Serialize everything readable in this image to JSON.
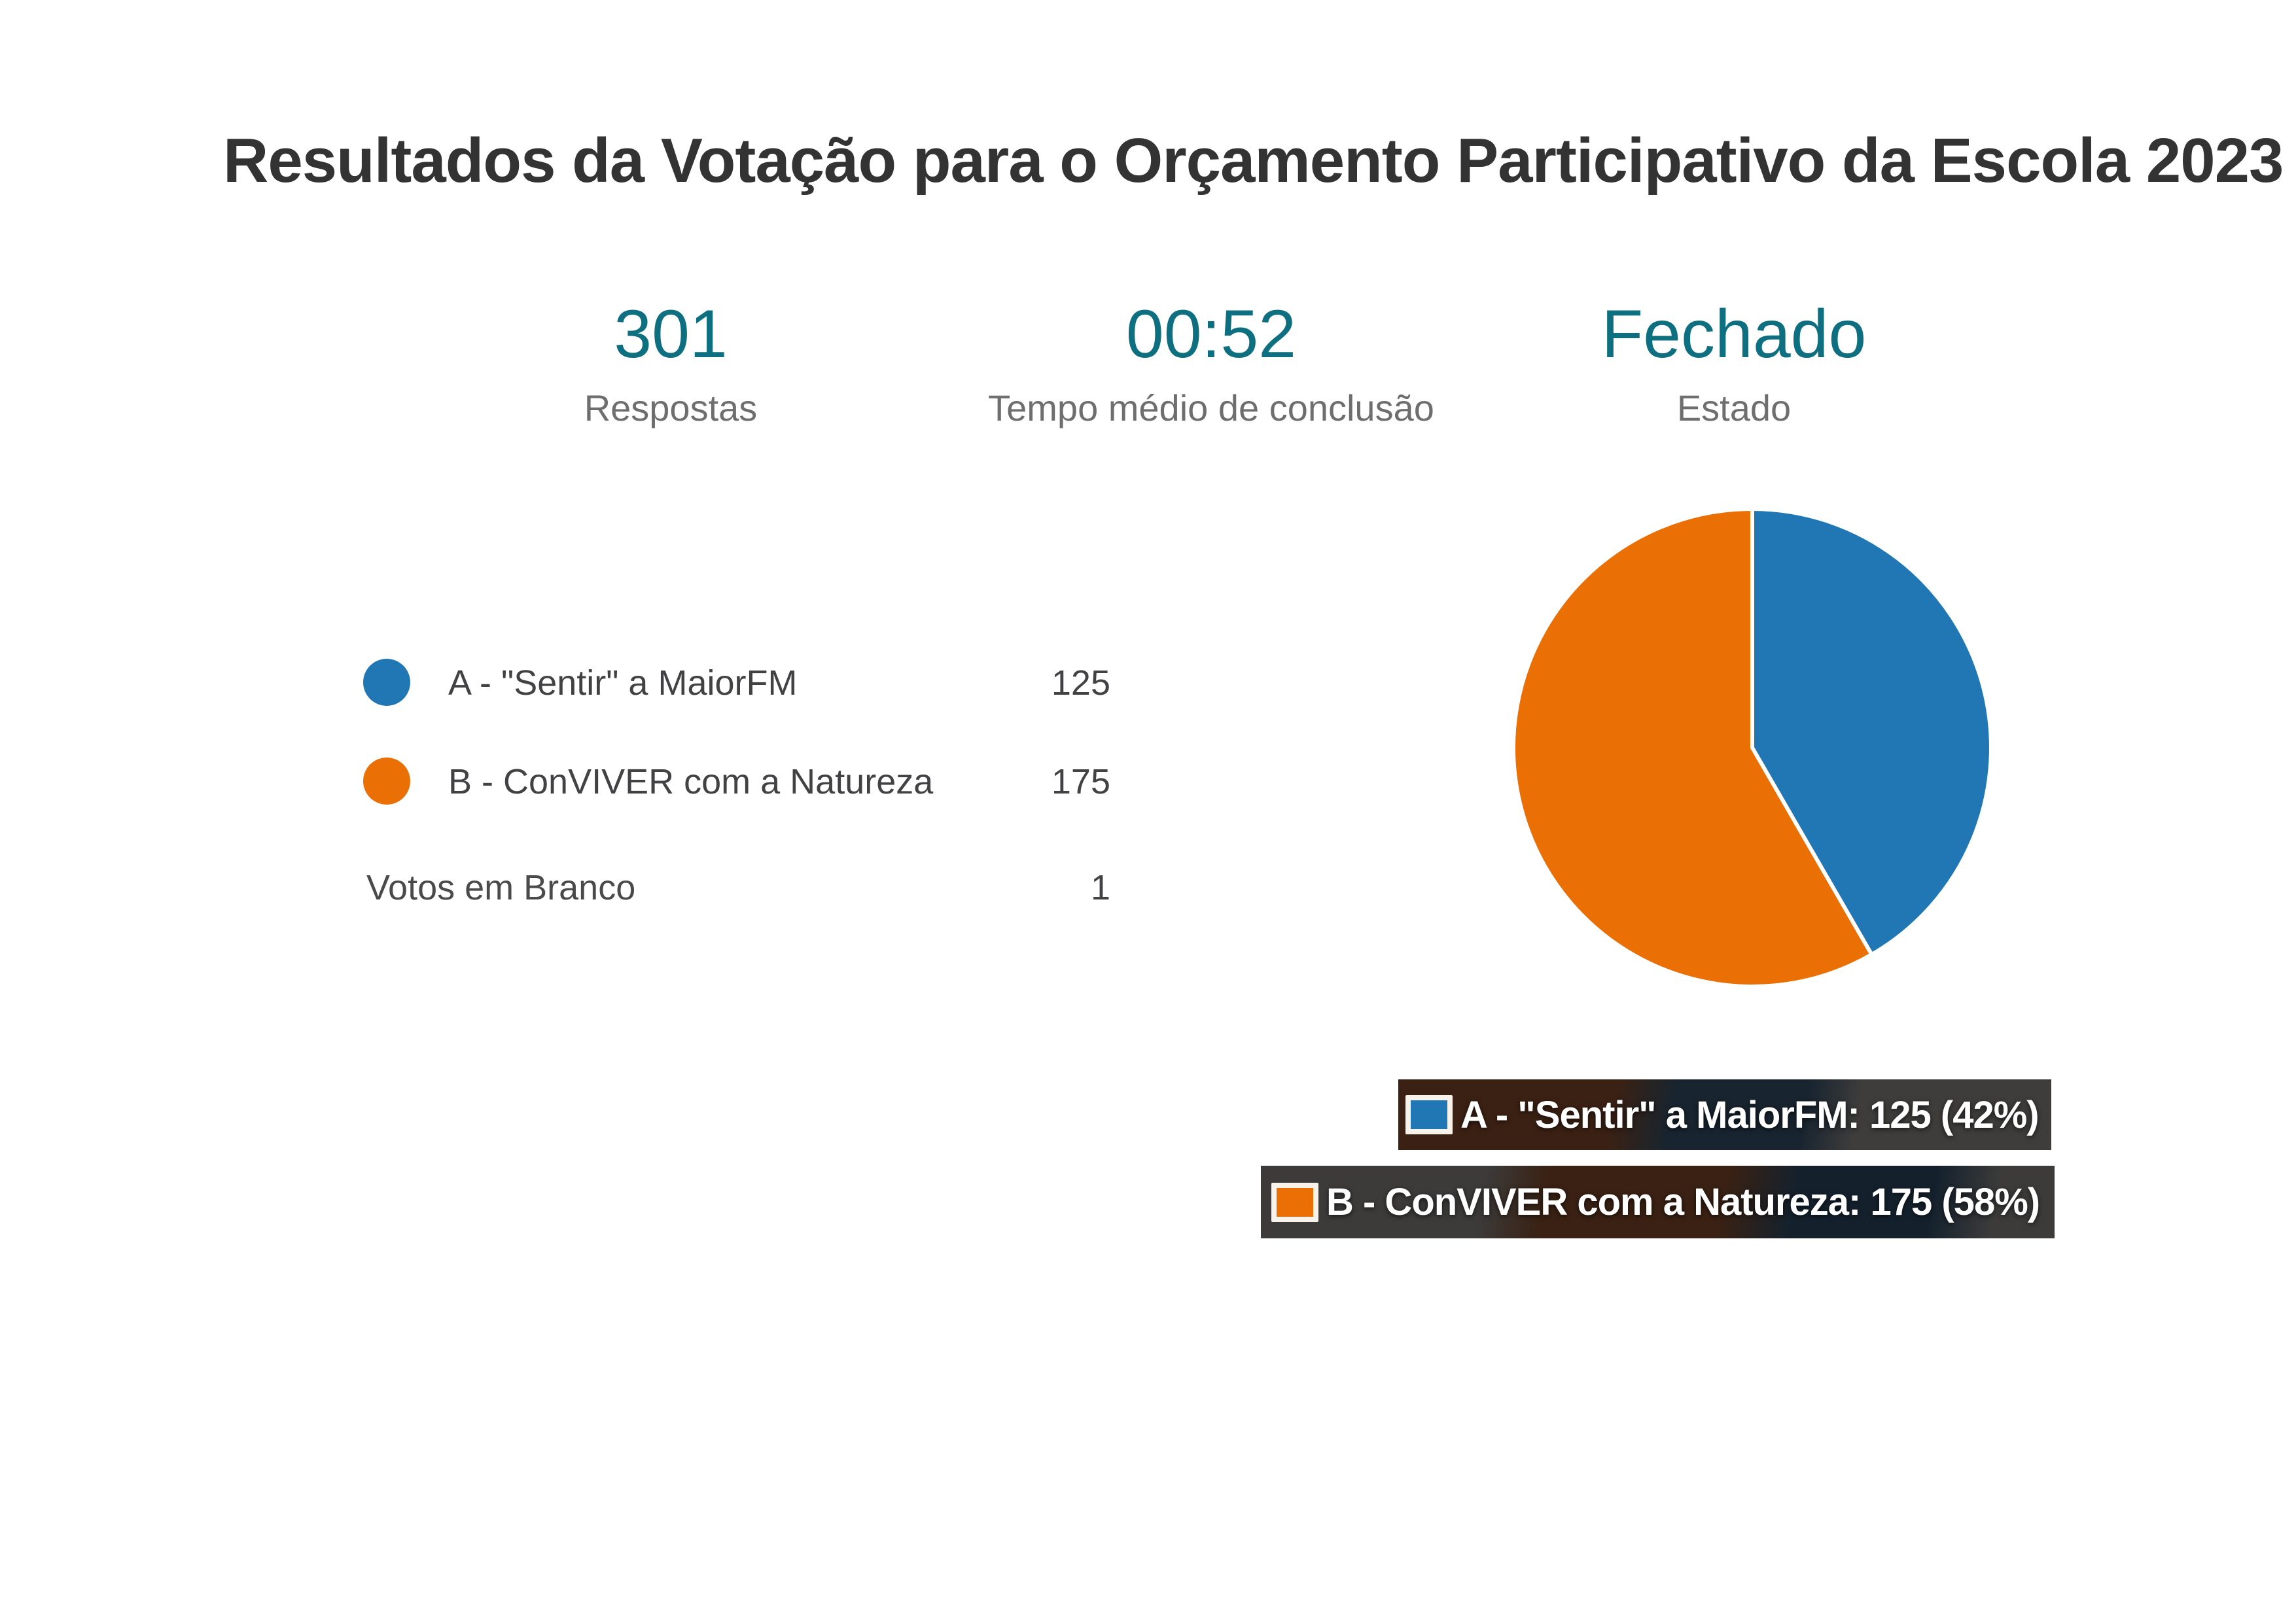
{
  "title": "Resultados da Votação para o Orçamento Participativo da Escola 2023",
  "stats": [
    {
      "value": "301",
      "label": "Respostas"
    },
    {
      "value": "00:52",
      "label": "Tempo médio de conclusão"
    },
    {
      "value": "Fechado",
      "label": "Estado"
    }
  ],
  "legend": {
    "items": [
      {
        "label": "A - \"Sentir\" a MaiorFM",
        "count": "125",
        "color": "#2177b4"
      },
      {
        "label": "B - ConVIVER com a Natureza",
        "count": "175",
        "color": "#ea7006"
      }
    ],
    "blank": {
      "label": "Votos em Branco",
      "count": "1"
    }
  },
  "tooltips": [
    {
      "text": "A - \"Sentir\" a MaiorFM: 125 (42%)",
      "color": "#2177b4"
    },
    {
      "text": "B - ConVIVER com a Natureza: 175 (58%)",
      "color": "#ea7006"
    }
  ],
  "colors": {
    "accent_teal": "#0e6f80",
    "title_text": "#333333",
    "blue": "#2177b4",
    "orange": "#ea7006"
  },
  "chart_data": {
    "type": "pie",
    "title": "Resultados da Votação para o Orçamento Participativo da Escola 2023",
    "categories": [
      "A - \"Sentir\" a MaiorFM",
      "B - ConVIVER com a Natureza"
    ],
    "values": [
      125,
      175
    ],
    "percents": [
      42,
      58
    ],
    "colors": [
      "#2177b4",
      "#ea7006"
    ],
    "start_angle": "top",
    "direction": "clockwise",
    "divider_color": "#ffffff",
    "blank_votes": 1,
    "total_responses": 301,
    "avg_completion_time": "00:52",
    "status": "Fechado",
    "legend_position": "left"
  }
}
